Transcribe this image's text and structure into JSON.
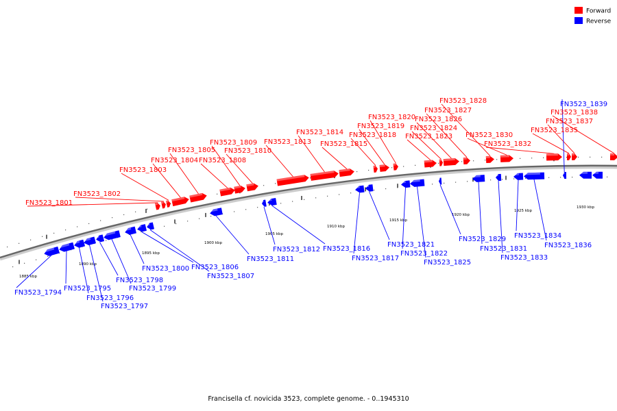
{
  "caption": "Francisella cf. novicida 3523, complete genome. - 0..1945310",
  "legend": [
    {
      "label": "Forward",
      "color": "#ff0000"
    },
    {
      "label": "Reverse",
      "color": "#0000ff"
    }
  ],
  "colors": {
    "forward": "#ff0000",
    "reverse": "#0000ff",
    "backbone": "#777777"
  },
  "scale_labels": [
    "1885 kbp",
    "1890 kbp",
    "1895 kbp",
    "1900 kbp",
    "1905 kbp",
    "1910 kbp",
    "1915 kbp",
    "1920 kbp",
    "1925 kbp",
    "1930 kbp"
  ],
  "forward_genes": [
    "FN3523_1801",
    "FN3523_1802",
    "FN3523_1803",
    "FN3523_1804",
    "FN3523_1805",
    "FN3523_1808",
    "FN3523_1809",
    "FN3523_1810",
    "FN3523_1813",
    "FN3523_1814",
    "FN3523_1815",
    "FN3523_1818",
    "FN3523_1819",
    "FN3523_1820",
    "FN3523_1823",
    "FN3523_1824",
    "FN3523_1826",
    "FN3523_1827",
    "FN3523_1828",
    "FN3523_1830",
    "FN3523_1832",
    "FN3523_1835",
    "FN3523_1837",
    "FN3523_1838"
  ],
  "reverse_genes": [
    "FN3523_1794",
    "FN3523_1795",
    "FN3523_1796",
    "FN3523_1797",
    "FN3523_1798",
    "FN3523_1799",
    "FN3523_1800",
    "FN3523_1806",
    "FN3523_1807",
    "FN3523_1811",
    "FN3523_1812",
    "FN3523_1816",
    "FN3523_1817",
    "FN3523_1821",
    "FN3523_1822",
    "FN3523_1825",
    "FN3523_1829",
    "FN3523_1831",
    "FN3523_1833",
    "FN3523_1834",
    "FN3523_1836",
    "FN3523_1839"
  ]
}
